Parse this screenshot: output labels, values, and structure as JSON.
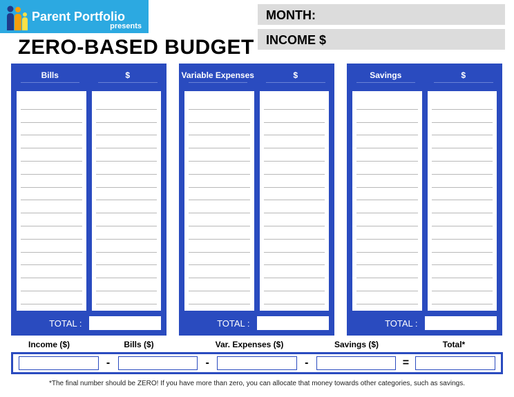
{
  "logo": {
    "title": "Parent Portfolio",
    "subtitle": "presents",
    "colors": {
      "bg": "#2ca9e1",
      "text": "#ffffff"
    }
  },
  "header": {
    "month_label": "MONTH:",
    "income_label": "INCOME  $",
    "field_bg": "#dcdcdc"
  },
  "title": "ZERO-BASED BUDGET",
  "section_color": "#2a4bbf",
  "line_color": "#b8b8b8",
  "line_count": 16,
  "sections": [
    {
      "name": "Bills",
      "amount_header": "$",
      "total_label": "TOTAL :"
    },
    {
      "name": "Variable Expenses",
      "amount_header": "$",
      "total_label": "TOTAL :"
    },
    {
      "name": "Savings",
      "amount_header": "$",
      "total_label": "TOTAL :"
    }
  ],
  "summary": {
    "labels": [
      "Income ($)",
      "Bills ($)",
      "Var. Expenses ($)",
      "Savings ($)",
      "Total*"
    ],
    "operators": [
      "-",
      "-",
      "-",
      "="
    ]
  },
  "footnote": "*The final number should be ZERO! If you have more than zero, you can allocate that money towards other categories, such as savings."
}
